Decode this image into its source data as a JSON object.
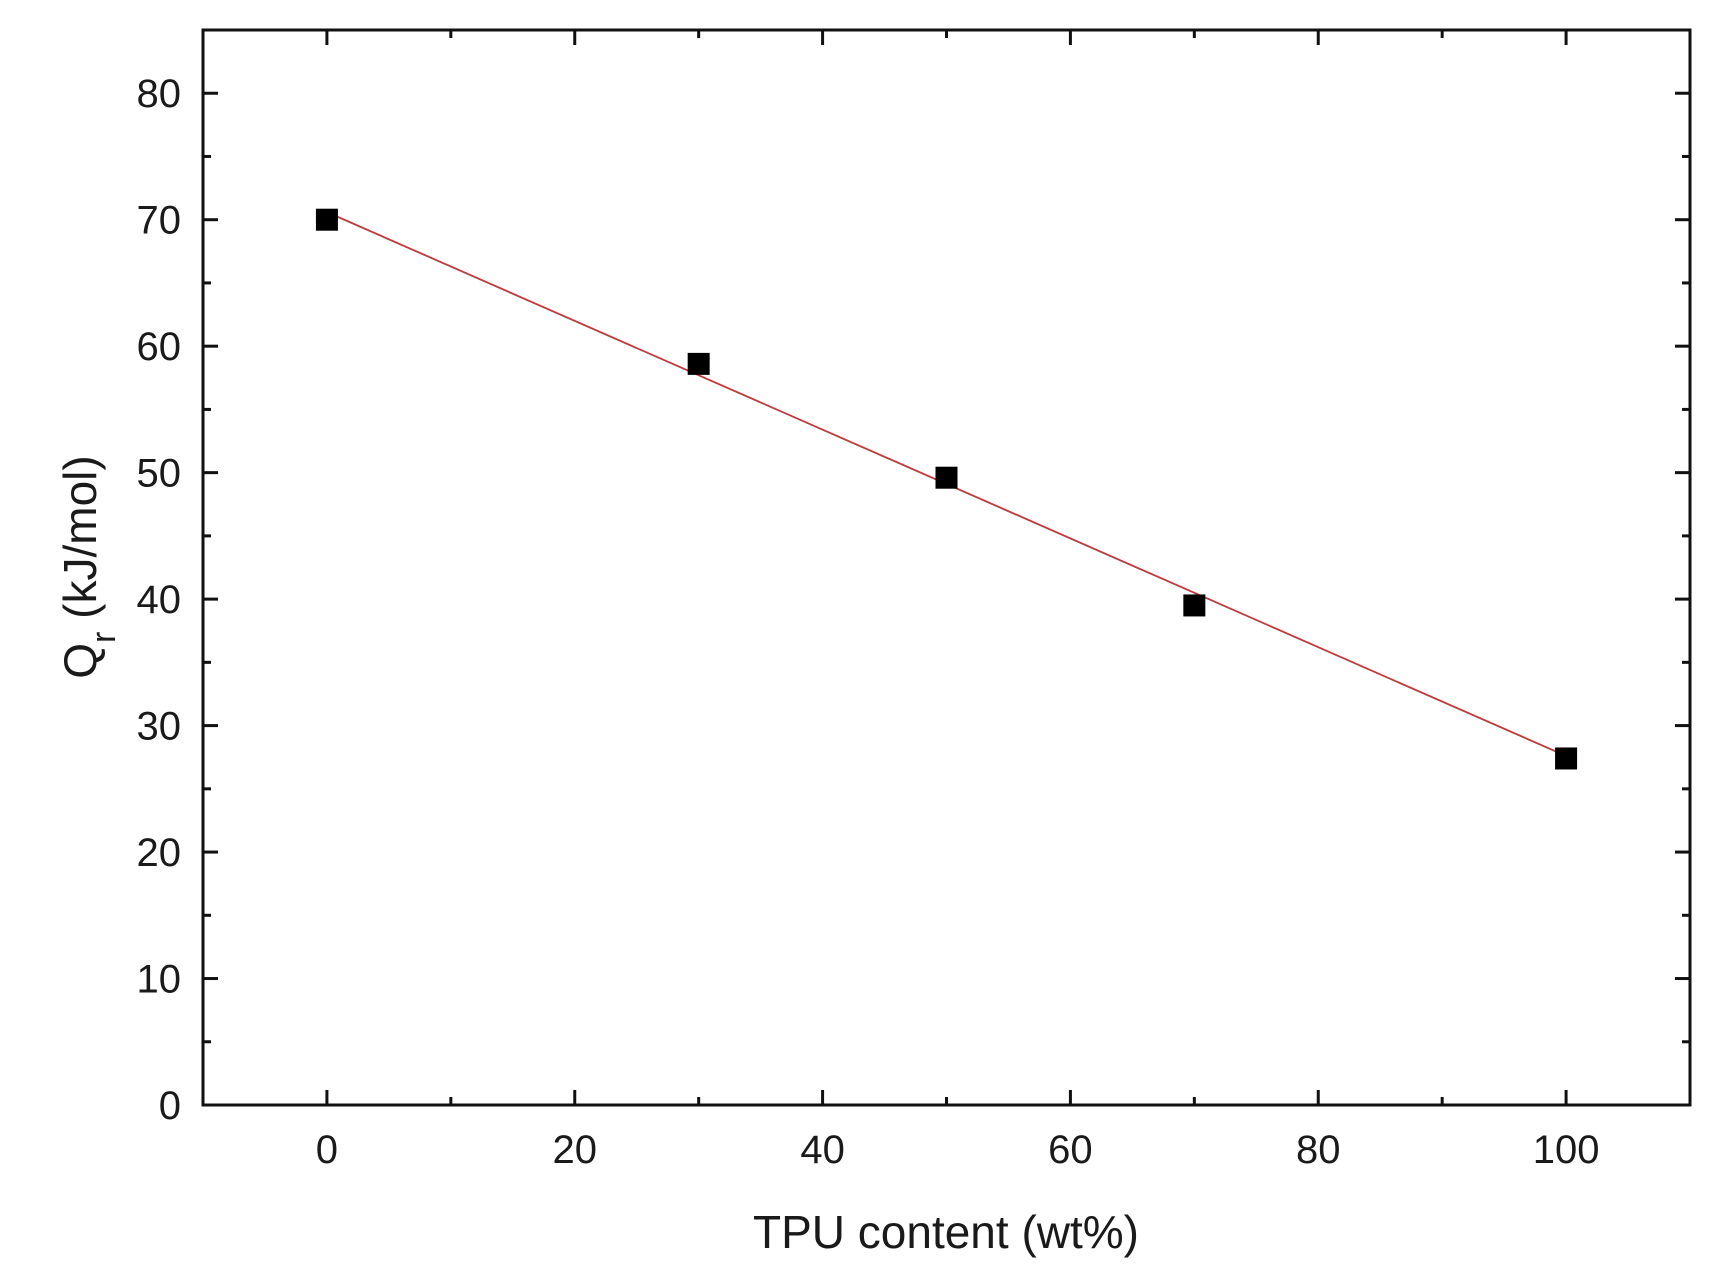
{
  "chart_data": {
    "type": "scatter",
    "title": "",
    "xlabel": "TPU content (wt%)",
    "ylabel_main": "Q",
    "ylabel_sub": "r",
    "ylabel_units": " (kJ/mol)",
    "xlim": [
      -10,
      110
    ],
    "ylim": [
      0,
      85
    ],
    "xticks": [
      0,
      20,
      40,
      60,
      80,
      100
    ],
    "yticks": [
      0,
      10,
      20,
      30,
      40,
      50,
      60,
      70,
      80
    ],
    "x_minor_step": 10,
    "y_minor_step": 5,
    "grid": false,
    "legend": "none",
    "series": [
      {
        "marker": "square",
        "color": "#000000",
        "x": [
          0,
          30,
          50,
          70,
          100
        ],
        "y": [
          70.0,
          58.6,
          49.6,
          39.5,
          27.4
        ]
      }
    ],
    "fit_line": {
      "color": "#c0393b",
      "x": [
        0,
        100
      ],
      "y": [
        70.6,
        27.6
      ]
    }
  }
}
